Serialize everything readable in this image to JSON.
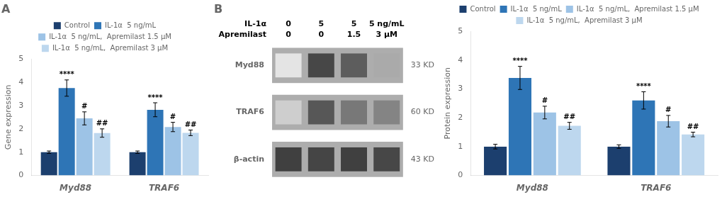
{
  "chart_data": [
    {
      "type": "bar",
      "title": "A",
      "ylabel": "Gene expression",
      "categories": [
        "Myd88",
        "TRAF6"
      ],
      "series": [
        {
          "name": "Control",
          "color": "#1C3F6E",
          "values": [
            1.0,
            1.0
          ],
          "errors": [
            0.05,
            0.05
          ]
        },
        {
          "name": "IL-1α  5 ng/mL",
          "color": "#2E75B6",
          "values": [
            3.75,
            2.82
          ],
          "errors": [
            0.35,
            0.3
          ]
        },
        {
          "name": "IL-1α  5 ng/mL,  Apremilast 1.5 μM",
          "color": "#9DC3E6",
          "values": [
            2.45,
            2.08
          ],
          "errors": [
            0.28,
            0.2
          ]
        },
        {
          "name": "IL-1α  5 ng/mL,  Apremilast 3 μM",
          "color": "#BDD7EE",
          "values": [
            1.82,
            1.83
          ],
          "errors": [
            0.18,
            0.12
          ]
        }
      ],
      "ylim": [
        0,
        5
      ],
      "yticks": [
        0,
        1,
        2,
        3,
        4,
        5
      ],
      "grid": false,
      "legend": "top",
      "annotations": [
        {
          "text": "****",
          "category": "Myd88",
          "series": "IL-1α  5 ng/mL"
        },
        {
          "text": "#",
          "category": "Myd88",
          "series": "IL-1α  5 ng/mL,  Apremilast 1.5 μM"
        },
        {
          "text": "##",
          "category": "Myd88",
          "series": "IL-1α  5 ng/mL,  Apremilast 3 μM"
        },
        {
          "text": "****",
          "category": "TRAF6",
          "series": "IL-1α  5 ng/mL"
        },
        {
          "text": "#",
          "category": "TRAF6",
          "series": "IL-1α  5 ng/mL,  Apremilast 1.5 μM"
        },
        {
          "text": "##",
          "category": "TRAF6",
          "series": "IL-1α  5 ng/mL,  Apremilast 3 μM"
        }
      ]
    },
    {
      "type": "heatmap",
      "title": "B",
      "column_header_labels": [
        "IL-1α",
        "Apremilast"
      ],
      "column_headers": [
        [
          "0",
          "5",
          "5",
          "5 ng/mL"
        ],
        [
          "0",
          "0",
          "1.5",
          "3 μM"
        ]
      ],
      "rows": [
        "Myd88",
        "TRAF6",
        "β-actin"
      ],
      "row_right_labels": [
        "33 KD",
        "60 KD",
        "43 KD"
      ],
      "cells": [
        [
          0.12,
          0.82,
          0.72,
          0.38
        ],
        [
          0.22,
          0.75,
          0.6,
          0.55
        ],
        [
          0.85,
          0.83,
          0.85,
          0.82
        ]
      ],
      "color": "#ADADAD",
      "grid": false
    },
    {
      "type": "bar",
      "ylabel": "Protein expression",
      "categories": [
        "Myd88",
        "TRAF6"
      ],
      "series": [
        {
          "name": "Control",
          "color": "#1C3F6E",
          "values": [
            1.0,
            1.0
          ],
          "errors": [
            0.08,
            0.06
          ]
        },
        {
          "name": "IL-1α  5 ng/mL",
          "color": "#2E75B6",
          "values": [
            3.38,
            2.6
          ],
          "errors": [
            0.4,
            0.3
          ]
        },
        {
          "name": "IL-1α  5 ng/mL,  Apremilast 1.5 μM",
          "color": "#9DC3E6",
          "values": [
            2.18,
            1.88
          ],
          "errors": [
            0.22,
            0.2
          ]
        },
        {
          "name": "IL-1α  5 ng/mL,  Apremilast 3 μM",
          "color": "#BDD7EE",
          "values": [
            1.72,
            1.42
          ],
          "errors": [
            0.12,
            0.08
          ]
        }
      ],
      "ylim": [
        0,
        5
      ],
      "yticks": [
        0,
        1,
        2,
        3,
        4,
        5
      ],
      "grid": false,
      "legend": "top",
      "annotations": [
        {
          "text": "****",
          "category": "Myd88",
          "series": "IL-1α  5 ng/mL"
        },
        {
          "text": "#",
          "category": "Myd88",
          "series": "IL-1α  5 ng/mL,  Apremilast 1.5 μM"
        },
        {
          "text": "##",
          "category": "Myd88",
          "series": "IL-1α  5 ng/mL,  Apremilast 3 μM"
        },
        {
          "text": "****",
          "category": "TRAF6",
          "series": "IL-1α  5 ng/mL"
        },
        {
          "text": "#",
          "category": "TRAF6",
          "series": "IL-1α  5 ng/mL,  Apremilast 1.5 μM"
        },
        {
          "text": "##",
          "category": "TRAF6",
          "series": "IL-1α  5 ng/mL,  Apremilast 3 μM"
        }
      ]
    }
  ]
}
